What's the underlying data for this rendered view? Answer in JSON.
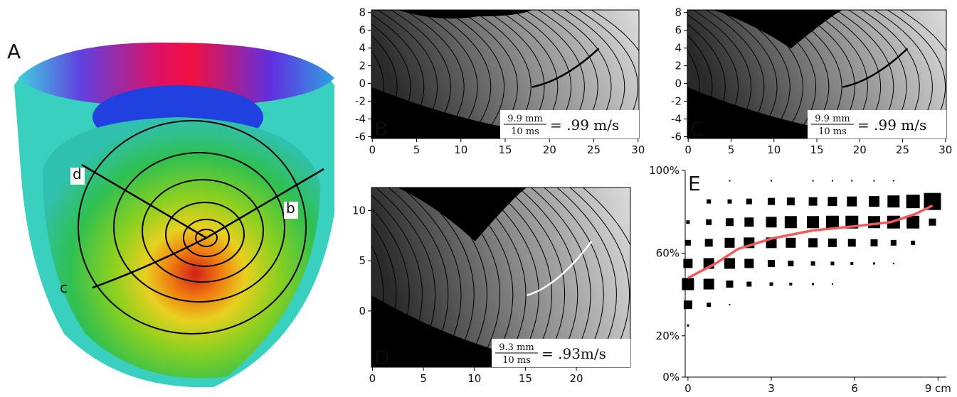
{
  "panel_a": {
    "label": "A",
    "annotations": [
      "d",
      "b",
      "c"
    ]
  },
  "chart_data": [
    {
      "type": "contour",
      "label": "B",
      "xlim": [
        -0.1,
        30.1
      ],
      "ylim": [
        -6.2,
        8.3
      ],
      "xticks": [
        0,
        5,
        10,
        15,
        20,
        25,
        30
      ],
      "yticks": [
        -6,
        -4,
        -2,
        0,
        2,
        4,
        6,
        8
      ],
      "equation": {
        "numerator": "9.9 mm",
        "denominator": "10 ms",
        "result": "= .99 m/s"
      }
    },
    {
      "type": "contour",
      "label": "C",
      "xlim": [
        -0.1,
        30.1
      ],
      "ylim": [
        -6.2,
        8.3
      ],
      "xticks": [
        0,
        5,
        10,
        15,
        20,
        25,
        30
      ],
      "yticks": [
        -6,
        -4,
        -2,
        0,
        2,
        4,
        6,
        8
      ],
      "equation": {
        "numerator": "9.9 mm",
        "denominator": "10 ms",
        "result": "= .99 m/s"
      }
    },
    {
      "type": "contour",
      "label": "D",
      "xlim": [
        -0.1,
        25.3
      ],
      "ylim": [
        -5.6,
        12.3
      ],
      "xticks": [
        0,
        5,
        10,
        15,
        20
      ],
      "yticks": [
        0,
        5,
        10
      ],
      "equation": {
        "numerator": "9.3 mm",
        "denominator": "10 ms",
        "result": "= .93m/s"
      }
    },
    {
      "type": "scatter",
      "label": "E",
      "color": "#000000",
      "xlim": [
        -0.1,
        9.3
      ],
      "ylim": [
        0,
        100
      ],
      "xticks": [
        0,
        3,
        6,
        {
          "value": 9,
          "label": "9 cm"
        }
      ],
      "yticks": [
        {
          "value": 0,
          "label": "0%"
        },
        {
          "value": 20,
          "label": "20%"
        },
        {
          "value": 60,
          "label": "60%"
        },
        {
          "value": 100,
          "label": "100%"
        }
      ],
      "x": [
        1.5,
        3,
        4.5,
        5.2,
        5.9,
        6.7,
        7.4,
        0.75,
        1.5,
        2.2,
        3,
        3.7,
        4.5,
        5.2,
        5.9,
        6.7,
        7.4,
        8.1,
        8.8,
        0,
        0.75,
        1.5,
        2.2,
        3,
        3.7,
        4.5,
        5.2,
        5.9,
        6.7,
        7.4,
        8.1,
        8.8,
        0,
        0.75,
        1.5,
        2.2,
        3,
        3.7,
        4.5,
        5.2,
        5.9,
        6.7,
        7.4,
        8.1,
        0,
        0.75,
        1.5,
        2.2,
        3,
        3.7,
        4.5,
        5.2,
        5.9,
        6.7,
        7.4,
        0,
        0.75,
        1.5,
        2.2,
        3,
        3.7,
        4.5,
        5.2,
        0,
        0.75,
        1.5,
        0
      ],
      "y": [
        95,
        95,
        95,
        95,
        95,
        95,
        95,
        85,
        85,
        85,
        85,
        85,
        85,
        85,
        85,
        85,
        85,
        85,
        85,
        75,
        75,
        75,
        75,
        75,
        75,
        75,
        75,
        75,
        75,
        75,
        75,
        75,
        65,
        65,
        65,
        65,
        65,
        65,
        65,
        65,
        65,
        65,
        65,
        65,
        55,
        55,
        55,
        55,
        55,
        55,
        55,
        55,
        55,
        55,
        55,
        45,
        45,
        45,
        45,
        45,
        45,
        45,
        45,
        35,
        35,
        35,
        25
      ],
      "size": [
        2,
        2,
        2,
        2,
        2,
        2,
        2,
        6,
        6,
        8,
        10,
        11,
        12,
        13,
        14,
        15,
        17,
        19,
        24,
        5,
        8,
        11,
        13,
        15,
        17,
        17,
        18,
        18,
        17,
        18,
        18,
        10,
        8,
        11,
        14,
        15,
        15,
        14,
        13,
        12,
        11,
        10,
        8,
        6,
        13,
        15,
        15,
        13,
        10,
        8,
        6,
        5,
        4,
        3,
        2,
        17,
        15,
        10,
        7,
        5,
        4,
        3,
        2,
        12,
        6,
        2,
        3
      ],
      "line": {
        "color": "#f05a5a",
        "x": [
          0,
          1,
          1.8,
          3,
          4.5,
          6,
          7.3,
          8.2,
          8.8
        ],
        "y": [
          48,
          55,
          62,
          67,
          71,
          73,
          75,
          79,
          83
        ]
      }
    }
  ]
}
